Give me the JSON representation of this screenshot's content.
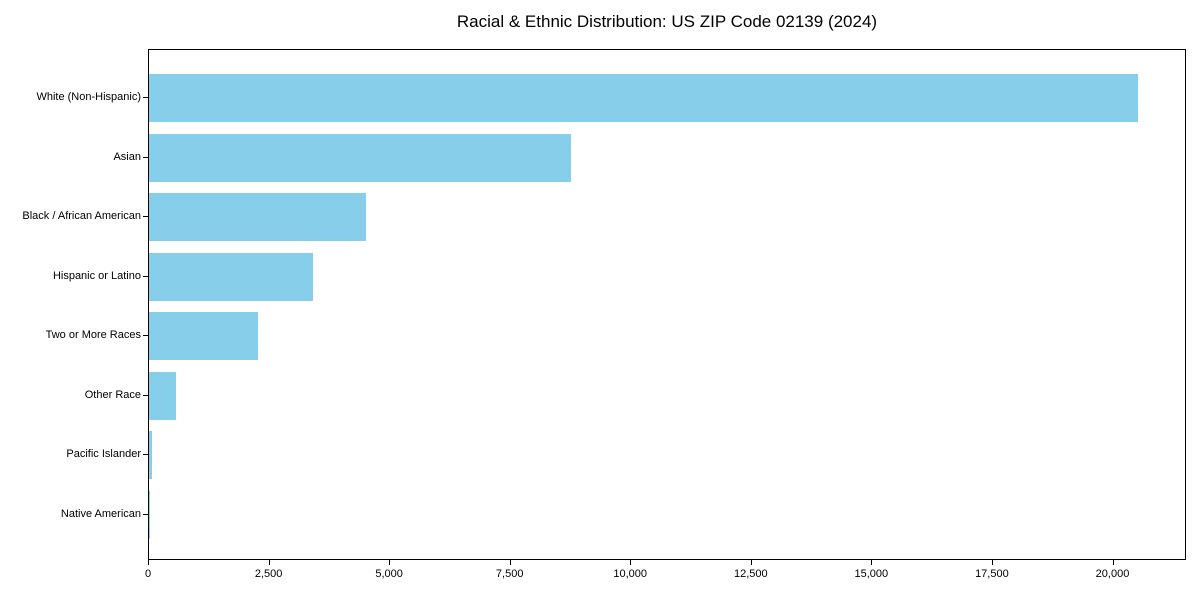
{
  "figure": {
    "title": "Racial & Ethnic Distribution: US ZIP Code 02139 (2024)"
  },
  "chart_data": {
    "type": "bar",
    "orientation": "horizontal",
    "title": "Racial & Ethnic Distribution: US ZIP Code 02139 (2024)",
    "categories": [
      "White (Non-Hispanic)",
      "Asian",
      "Black / African American",
      "Hispanic or Latino",
      "Two or More Races",
      "Other Race",
      "Pacific Islander",
      "Native American"
    ],
    "values": [
      20500,
      8750,
      4500,
      3400,
      2250,
      550,
      60,
      20
    ],
    "xlabel": "",
    "ylabel": "",
    "xlim": [
      0,
      21525
    ],
    "xticks": [
      0,
      2500,
      5000,
      7500,
      10000,
      12500,
      15000,
      17500,
      20000
    ],
    "xtick_labels": [
      "0",
      "2,500",
      "5,000",
      "7,500",
      "10,000",
      "12,500",
      "15,000",
      "17,500",
      "20,000"
    ],
    "bar_color": "#87CEEB",
    "axis_color": "#000000",
    "text_color": "#000000",
    "background_color": "#FFFFFF",
    "grid": false,
    "legend": false
  }
}
